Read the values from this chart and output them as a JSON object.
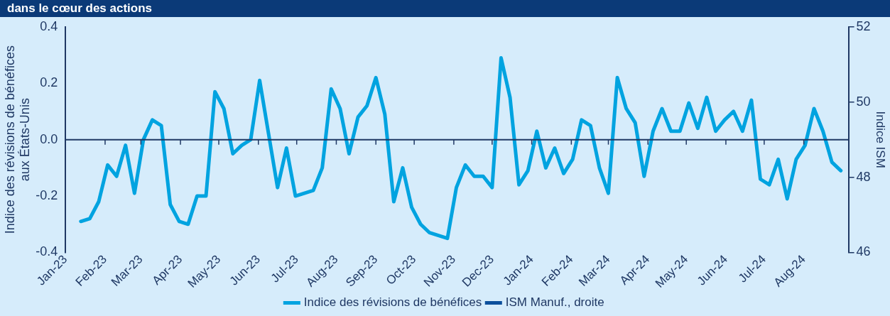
{
  "chart_data": {
    "type": "line",
    "title": "dans le cœur des actions",
    "ylabel": "Indice des révisions de bénéfices\naux États-Unis",
    "y2label": "Indice ISM",
    "x": [
      "2023-01-13",
      "2023-01-20",
      "2023-01-27",
      "2023-02-03",
      "2023-02-10",
      "2023-02-17",
      "2023-02-24",
      "2023-03-03",
      "2023-03-10",
      "2023-03-17",
      "2023-03-24",
      "2023-03-31",
      "2023-04-07",
      "2023-04-14",
      "2023-04-21",
      "2023-04-28",
      "2023-05-05",
      "2023-05-12",
      "2023-05-19",
      "2023-05-26",
      "2023-06-02",
      "2023-06-09",
      "2023-06-16",
      "2023-06-23",
      "2023-06-30",
      "2023-07-07",
      "2023-07-14",
      "2023-07-21",
      "2023-07-28",
      "2023-08-04",
      "2023-08-11",
      "2023-08-18",
      "2023-08-25",
      "2023-09-01",
      "2023-09-08",
      "2023-09-15",
      "2023-09-22",
      "2023-09-29",
      "2023-10-06",
      "2023-10-13",
      "2023-10-20",
      "2023-10-27",
      "2023-11-03",
      "2023-11-10",
      "2023-11-17",
      "2023-11-24",
      "2023-12-01",
      "2023-12-08",
      "2023-12-15",
      "2023-12-22",
      "2023-12-29",
      "2024-01-05",
      "2024-01-12",
      "2024-01-19",
      "2024-01-26",
      "2024-02-02",
      "2024-02-09",
      "2024-02-16",
      "2024-02-23",
      "2024-03-01",
      "2024-03-08",
      "2024-03-15",
      "2024-03-22",
      "2024-03-29",
      "2024-04-05",
      "2024-04-12",
      "2024-04-19",
      "2024-04-26",
      "2024-05-03",
      "2024-05-10",
      "2024-05-17",
      "2024-05-24",
      "2024-05-31",
      "2024-06-07",
      "2024-06-14",
      "2024-06-21",
      "2024-06-28",
      "2024-07-05",
      "2024-07-12",
      "2024-07-19",
      "2024-07-26",
      "2024-08-02",
      "2024-08-09",
      "2024-08-16",
      "2024-08-23",
      "2024-08-30"
    ],
    "series": [
      {
        "name": "Indice des révisions de bénéfices",
        "color": "#00a3e0",
        "values": [
          -0.29,
          -0.28,
          -0.22,
          -0.09,
          -0.13,
          -0.02,
          -0.19,
          0.0,
          0.07,
          0.05,
          -0.23,
          -0.29,
          -0.3,
          -0.2,
          -0.2,
          0.17,
          0.11,
          -0.05,
          -0.02,
          0.0,
          0.21,
          0.02,
          -0.17,
          -0.03,
          -0.2,
          -0.19,
          -0.18,
          -0.1,
          0.18,
          0.11,
          -0.05,
          0.08,
          0.12,
          0.22,
          0.09,
          -0.22,
          -0.1,
          -0.24,
          -0.3,
          -0.33,
          -0.34,
          -0.35,
          -0.17,
          -0.09,
          -0.13,
          -0.13,
          -0.17,
          0.29,
          0.15,
          -0.16,
          -0.11,
          0.03,
          -0.1,
          -0.03,
          -0.12,
          -0.07,
          0.07,
          0.05,
          -0.1,
          -0.19,
          0.22,
          0.11,
          0.06,
          -0.13,
          0.03,
          0.11,
          0.03,
          0.03,
          0.13,
          0.04,
          0.15,
          0.03,
          0.07,
          0.1,
          0.03,
          0.14,
          -0.14,
          -0.16,
          -0.07,
          -0.21,
          -0.07,
          -0.02,
          0.11,
          0.03,
          -0.08,
          -0.11
        ]
      },
      {
        "name": "ISM Manuf., droite",
        "color": "#0b4f9c",
        "axis": "y2",
        "values": [
          null,
          null,
          null,
          null,
          null,
          null,
          null,
          null,
          null,
          null,
          null,
          null,
          null,
          null,
          null,
          null,
          null,
          null,
          null,
          null,
          null,
          null,
          null,
          null,
          null,
          null,
          null,
          null,
          null,
          null,
          null,
          null,
          null,
          null,
          null,
          null,
          null,
          null,
          null,
          null,
          null,
          null,
          null,
          null,
          null,
          null,
          null,
          null,
          null,
          null,
          null,
          null,
          null,
          null,
          null,
          null,
          null,
          null,
          null,
          null,
          null,
          null,
          null,
          null,
          null,
          null,
          null,
          null,
          null,
          null,
          null,
          null,
          null,
          null,
          null,
          null,
          null,
          null,
          null,
          null,
          null,
          null,
          null,
          null,
          null,
          null
        ]
      }
    ],
    "xlim": [
      "2023-01-01",
      "2024-09-05"
    ],
    "xticks": [
      {
        "value": "2023-01-01",
        "label": "Jan-23"
      },
      {
        "value": "2023-02-01",
        "label": "Feb-23"
      },
      {
        "value": "2023-03-01",
        "label": "Mar-23"
      },
      {
        "value": "2023-04-01",
        "label": "Apr-23"
      },
      {
        "value": "2023-05-01",
        "label": "May-23"
      },
      {
        "value": "2023-06-01",
        "label": "Jun-23"
      },
      {
        "value": "2023-07-01",
        "label": "Jul-23"
      },
      {
        "value": "2023-08-01",
        "label": "Aug-23"
      },
      {
        "value": "2023-09-01",
        "label": "Sep-23"
      },
      {
        "value": "2023-10-01",
        "label": "Oct-23"
      },
      {
        "value": "2023-11-01",
        "label": "Nov-23"
      },
      {
        "value": "2023-12-01",
        "label": "Dec-23"
      },
      {
        "value": "2024-01-01",
        "label": "Jan-24"
      },
      {
        "value": "2024-02-01",
        "label": "Feb-24"
      },
      {
        "value": "2024-03-01",
        "label": "Mar-24"
      },
      {
        "value": "2024-04-01",
        "label": "Apr-24"
      },
      {
        "value": "2024-05-01",
        "label": "May-24"
      },
      {
        "value": "2024-06-01",
        "label": "Jun-24"
      },
      {
        "value": "2024-07-01",
        "label": "Jul-24"
      },
      {
        "value": "2024-08-01",
        "label": "Aug-24"
      }
    ],
    "ylim": [
      -0.4,
      0.4
    ],
    "yticks": [
      {
        "value": -0.4,
        "label": "-0.4"
      },
      {
        "value": -0.2,
        "label": "-0.2"
      },
      {
        "value": 0,
        "label": "0.0"
      },
      {
        "value": 0.2,
        "label": "0.2"
      },
      {
        "value": 0.4,
        "label": "0.4"
      }
    ],
    "y2lim": [
      46,
      52
    ],
    "y2ticks": [
      46,
      48,
      50,
      52
    ],
    "ref_lines": [
      {
        "axis": "y",
        "value": 0,
        "color": "#1f3864"
      }
    ],
    "grid": false,
    "legend": "bottom",
    "marker": "none",
    "line_style": "solid"
  }
}
